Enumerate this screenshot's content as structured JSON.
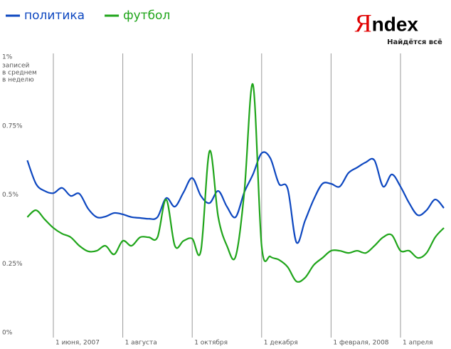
{
  "chart_data": {
    "type": "line",
    "categories": [
      null,
      null,
      null,
      "1 июня, 2007",
      null,
      null,
      null,
      null,
      null,
      null,
      null,
      "1 августа",
      null,
      null,
      null,
      null,
      null,
      null,
      null,
      "1 октября",
      null,
      null,
      null,
      null,
      null,
      null,
      null,
      "1 декабря",
      null,
      null,
      null,
      null,
      null,
      null,
      null,
      "1 февраля, 2008",
      null,
      null,
      null,
      null,
      null,
      null,
      null,
      "1 апреля",
      null,
      null,
      null,
      null,
      null
    ],
    "series": [
      {
        "name": "политика",
        "color": "#0d47c0",
        "values": [
          0.625,
          0.54,
          0.514,
          0.506,
          0.525,
          0.496,
          0.504,
          0.45,
          0.419,
          0.421,
          0.434,
          0.429,
          0.419,
          0.416,
          0.413,
          0.419,
          0.488,
          0.457,
          0.509,
          0.561,
          0.496,
          0.47,
          0.514,
          0.457,
          0.419,
          0.509,
          0.574,
          0.651,
          0.633,
          0.54,
          0.522,
          0.328,
          0.406,
          0.483,
          0.54,
          0.54,
          0.53,
          0.579,
          0.599,
          0.618,
          0.625,
          0.53,
          0.574,
          0.53,
          0.47,
          0.426,
          0.444,
          0.483,
          0.452
        ]
      },
      {
        "name": "футбол",
        "color": "#1fa51a",
        "values": [
          0.419,
          0.444,
          0.411,
          0.38,
          0.359,
          0.346,
          0.315,
          0.295,
          0.297,
          0.315,
          0.284,
          0.333,
          0.315,
          0.346,
          0.346,
          0.346,
          0.483,
          0.315,
          0.333,
          0.341,
          0.297,
          0.659,
          0.419,
          0.315,
          0.276,
          0.509,
          0.9,
          0.315,
          0.276,
          0.264,
          0.238,
          0.186,
          0.199,
          0.245,
          0.271,
          0.297,
          0.297,
          0.289,
          0.297,
          0.289,
          0.315,
          0.346,
          0.354,
          0.297,
          0.297,
          0.271,
          0.289,
          0.346,
          0.38
        ]
      }
    ],
    "ylim": [
      0,
      1
    ],
    "yticks": [
      {
        "value": 0,
        "label": "0%"
      },
      {
        "value": 0.25,
        "label": "0.25%"
      },
      {
        "value": 0.5,
        "label": "0.5%"
      },
      {
        "value": 0.75,
        "label": "0.75%"
      },
      {
        "value": 1,
        "label": "1%"
      }
    ],
    "y_label": [
      "записей",
      "в среднем",
      "в неделю"
    ],
    "x_grid": true,
    "legend": "top-left"
  },
  "branding": {
    "logo_mark": "Я",
    "logo_text": "ndex",
    "slogan": "Найдётся всё"
  }
}
